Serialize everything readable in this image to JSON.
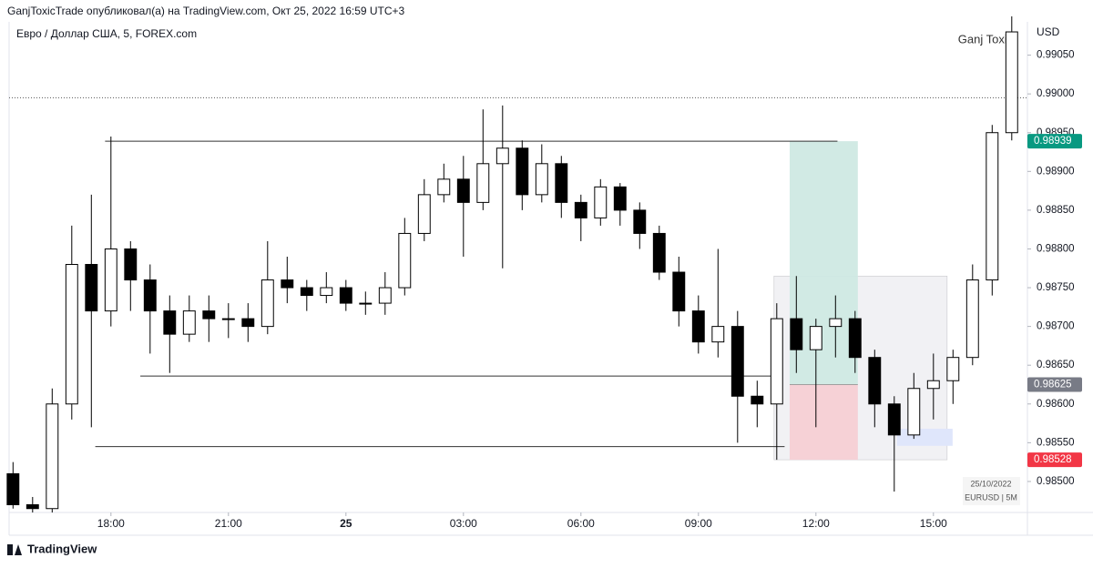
{
  "header": {
    "publisher": "GanjToxicTrade опубликовал(а) на TradingView.com, Окт 25, 2022 16:59 UTC+3",
    "footer": "TradingView"
  },
  "chart_data": {
    "type": "candlestick",
    "title": "Евро / Доллар США, 5, FOREX.com",
    "currency": "USD",
    "watermark": "Ganj Toxic",
    "info_box": [
      "25/10/2022",
      "EURUSD | 5M"
    ],
    "x": [
      15.5,
      16,
      16.5,
      17,
      17.5,
      18,
      18.5,
      19,
      19.5,
      20,
      20.5,
      21,
      21.5,
      22,
      22.5,
      23,
      23.5,
      24,
      24.5,
      25,
      25.5,
      26,
      26.5,
      27,
      27.5,
      28,
      28.5,
      29,
      29.5,
      30,
      30.5,
      31,
      31.5,
      32,
      32.5,
      33,
      33.5,
      34,
      34.5,
      35,
      35.5,
      36,
      36.5,
      37,
      37.5,
      38,
      38.5,
      39,
      39.5,
      40,
      40.5,
      41
    ],
    "open": [
      0.9851,
      0.9847,
      0.98465,
      0.986,
      0.9878,
      0.9872,
      0.988,
      0.9876,
      0.9872,
      0.9869,
      0.9872,
      0.9871,
      0.9871,
      0.987,
      0.9876,
      0.9875,
      0.9874,
      0.9875,
      0.9873,
      0.9873,
      0.9875,
      0.9882,
      0.9887,
      0.9889,
      0.9886,
      0.9891,
      0.9893,
      0.9887,
      0.9891,
      0.9886,
      0.9884,
      0.9888,
      0.9885,
      0.9882,
      0.9877,
      0.9872,
      0.9868,
      0.987,
      0.9861,
      0.986,
      0.9871,
      0.9867,
      0.987,
      0.9871,
      0.9866,
      0.986,
      0.9856,
      0.9862,
      0.9863,
      0.9866,
      0.9876,
      0.9895
    ],
    "high": [
      0.98525,
      0.9848,
      0.9862,
      0.9883,
      0.9887,
      0.98945,
      0.9881,
      0.9878,
      0.9874,
      0.9874,
      0.9874,
      0.9873,
      0.9873,
      0.9881,
      0.9879,
      0.9876,
      0.9877,
      0.9876,
      0.98745,
      0.9877,
      0.9884,
      0.9889,
      0.9891,
      0.9892,
      0.9898,
      0.98985,
      0.9894,
      0.98935,
      0.9892,
      0.9887,
      0.9889,
      0.98885,
      0.9886,
      0.9883,
      0.9879,
      0.9874,
      0.988,
      0.9872,
      0.9863,
      0.9873,
      0.98765,
      0.9871,
      0.9874,
      0.9872,
      0.9867,
      0.9861,
      0.9864,
      0.98665,
      0.9867,
      0.9878,
      0.9896,
      0.991
    ],
    "low": [
      0.98465,
      0.9846,
      0.9846,
      0.9858,
      0.9857,
      0.987,
      0.9872,
      0.98665,
      0.9864,
      0.9868,
      0.9868,
      0.98685,
      0.9868,
      0.9869,
      0.9873,
      0.9872,
      0.9873,
      0.9872,
      0.98715,
      0.98715,
      0.9874,
      0.9881,
      0.9886,
      0.9879,
      0.9885,
      0.98775,
      0.9885,
      0.9886,
      0.9884,
      0.9881,
      0.9883,
      0.9883,
      0.988,
      0.9876,
      0.987,
      0.98665,
      0.9866,
      0.9855,
      0.9857,
      0.98528,
      0.9864,
      0.9857,
      0.9866,
      0.9864,
      0.9857,
      0.98487,
      0.98555,
      0.9858,
      0.986,
      0.9865,
      0.9874,
      0.9894
    ],
    "close": [
      0.9847,
      0.98465,
      0.986,
      0.9878,
      0.9872,
      0.988,
      0.9876,
      0.9872,
      0.9869,
      0.9872,
      0.9871,
      0.9871,
      0.987,
      0.9876,
      0.9875,
      0.9874,
      0.9875,
      0.9873,
      0.9873,
      0.9875,
      0.9882,
      0.9887,
      0.9889,
      0.9886,
      0.9891,
      0.9893,
      0.9887,
      0.9891,
      0.9886,
      0.9884,
      0.9888,
      0.9885,
      0.9882,
      0.9877,
      0.9872,
      0.9868,
      0.987,
      0.9861,
      0.986,
      0.9871,
      0.9867,
      0.987,
      0.9871,
      0.9866,
      0.986,
      0.9856,
      0.9862,
      0.9863,
      0.9866,
      0.9876,
      0.9895,
      0.9908
    ],
    "up_color": "#ffffff",
    "down_color": "#000000",
    "xlim": [
      15.4,
      41.4
    ],
    "xticks": [
      {
        "value": 18,
        "label": "18:00"
      },
      {
        "value": 21,
        "label": "21:00"
      },
      {
        "value": 24,
        "label": "25"
      },
      {
        "value": 27,
        "label": "03:00"
      },
      {
        "value": 30,
        "label": "06:00"
      },
      {
        "value": 33,
        "label": "09:00"
      },
      {
        "value": 36,
        "label": "12:00"
      },
      {
        "value": 39,
        "label": "15:00"
      }
    ],
    "ylim": [
      0.9846,
      0.991
    ],
    "yticks": [
      {
        "value": 0.985,
        "label": "0.98500"
      },
      {
        "value": 0.9855,
        "label": "0.98550"
      },
      {
        "value": 0.986,
        "label": "0.98600"
      },
      {
        "value": 0.9865,
        "label": "0.98650"
      },
      {
        "value": 0.987,
        "label": "0.98700"
      },
      {
        "value": 0.9875,
        "label": "0.98750"
      },
      {
        "value": 0.988,
        "label": "0.98800"
      },
      {
        "value": 0.9885,
        "label": "0.98850"
      },
      {
        "value": 0.989,
        "label": "0.98900"
      },
      {
        "value": 0.9895,
        "label": "0.98950"
      },
      {
        "value": 0.99,
        "label": "0.99000"
      },
      {
        "value": 0.9905,
        "label": "0.99050"
      }
    ],
    "price_line": 0.98995,
    "levels": [
      {
        "price": 0.98939,
        "x0": 17.85,
        "x1": 36.55
      },
      {
        "price": 0.98636,
        "x0": 18.75,
        "x1": 34.9
      },
      {
        "price": 0.98545,
        "x0": 17.6,
        "x1": 35.2
      }
    ],
    "position": {
      "x0": 35.33,
      "x1": 37.07,
      "entry": 0.98625,
      "target": 0.98939,
      "stop": 0.98528,
      "profit_color": "#cfe9e3",
      "loss_color": "#f6cfd4"
    },
    "boxes": [
      {
        "x0": 34.93,
        "x1": 39.35,
        "top": 0.98765,
        "bottom": 0.98528,
        "color": "#f1f1f4"
      },
      {
        "x0": 38.07,
        "x1": 39.49,
        "top": 0.98568,
        "bottom": 0.98546,
        "color": "#dfe6fb"
      }
    ],
    "price_labels": [
      {
        "value": 0.98939,
        "label": "0.98939",
        "color": "#089981"
      },
      {
        "value": 0.98625,
        "label": "0.98625",
        "color": "#787b86"
      },
      {
        "value": 0.98528,
        "label": "0.98528",
        "color": "#f23645"
      }
    ]
  }
}
